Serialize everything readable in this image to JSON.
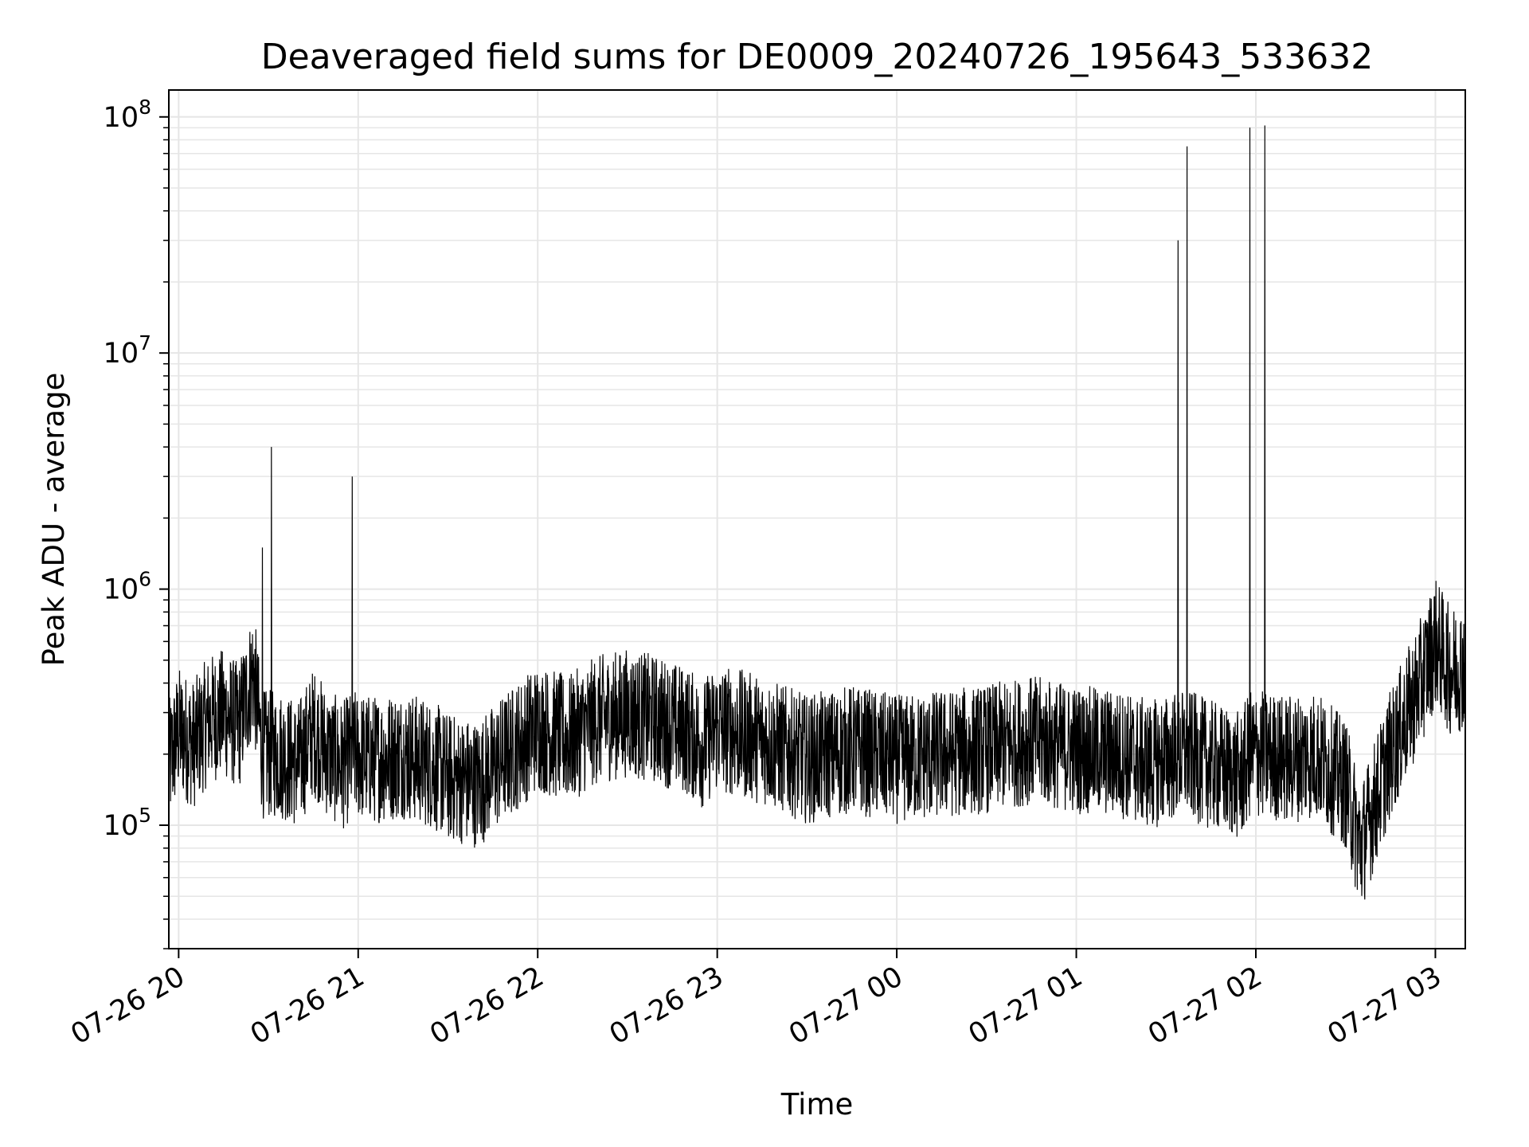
{
  "chart_data": {
    "type": "line",
    "title": "Deaveraged field sums for DE0009_20240726_195643_533632",
    "xlabel": "Time",
    "ylabel": "Peak ADU - average",
    "yscale": "log",
    "ylim": [
      30000,
      130000000
    ],
    "xlim": [
      "2024-07-26 19:56:43",
      "2024-07-27 03:10:00"
    ],
    "grid": true,
    "x_ticks": [
      {
        "time": "2024-07-26 20:00",
        "label": "07-26 20"
      },
      {
        "time": "2024-07-26 21:00",
        "label": "07-26 21"
      },
      {
        "time": "2024-07-26 22:00",
        "label": "07-26 22"
      },
      {
        "time": "2024-07-26 23:00",
        "label": "07-26 23"
      },
      {
        "time": "2024-07-27 00:00",
        "label": "07-27 00"
      },
      {
        "time": "2024-07-27 01:00",
        "label": "07-27 01"
      },
      {
        "time": "2024-07-27 02:00",
        "label": "07-27 02"
      },
      {
        "time": "2024-07-27 03:00",
        "label": "07-27 03"
      }
    ],
    "y_ticks": [
      {
        "value": 100000,
        "base": "10",
        "exp": "5"
      },
      {
        "value": 1000000,
        "base": "10",
        "exp": "6"
      },
      {
        "value": 10000000,
        "base": "10",
        "exp": "7"
      },
      {
        "value": 100000000,
        "base": "10",
        "exp": "8"
      }
    ],
    "series": [
      {
        "color": "#000000",
        "x": [
          "2024-07-26 19:56:43",
          "2024-07-26 20:00",
          "2024-07-26 20:05",
          "2024-07-26 20:10",
          "2024-07-26 20:15",
          "2024-07-26 20:20",
          "2024-07-26 20:25",
          "2024-07-26 20:28",
          "2024-07-26 20:31",
          "2024-07-26 20:34",
          "2024-07-26 20:40",
          "2024-07-26 20:45",
          "2024-07-26 20:50",
          "2024-07-26 20:55",
          "2024-07-26 20:58",
          "2024-07-26 21:05",
          "2024-07-26 21:15",
          "2024-07-26 21:25",
          "2024-07-26 21:30",
          "2024-07-26 21:40",
          "2024-07-26 21:50",
          "2024-07-26 22:00",
          "2024-07-26 22:10",
          "2024-07-26 22:20",
          "2024-07-26 22:30",
          "2024-07-26 22:40",
          "2024-07-26 22:50",
          "2024-07-26 22:55",
          "2024-07-26 23:00",
          "2024-07-26 23:15",
          "2024-07-26 23:30",
          "2024-07-26 23:45",
          "2024-07-27 00:00",
          "2024-07-27 00:15",
          "2024-07-27 00:30",
          "2024-07-27 00:45",
          "2024-07-27 01:00",
          "2024-07-27 01:15",
          "2024-07-27 01:25",
          "2024-07-27 01:34",
          "2024-07-27 01:37",
          "2024-07-27 01:45",
          "2024-07-27 01:55",
          "2024-07-27 01:58",
          "2024-07-27 02:03",
          "2024-07-27 02:10",
          "2024-07-27 02:20",
          "2024-07-27 02:30",
          "2024-07-27 02:35",
          "2024-07-27 02:45",
          "2024-07-27 02:55",
          "2024-07-27 03:00",
          "2024-07-27 03:05",
          "2024-07-27 03:10"
        ],
        "y": [
          180000,
          250000,
          220000,
          280000,
          300000,
          260000,
          450000,
          1500000,
          4000000,
          200000,
          180000,
          250000,
          200000,
          180000,
          3000000,
          190000,
          200000,
          180000,
          160000,
          150000,
          200000,
          260000,
          230000,
          280000,
          300000,
          280000,
          250000,
          220000,
          260000,
          230000,
          190000,
          210000,
          190000,
          200000,
          210000,
          230000,
          210000,
          200000,
          180000,
          30000000,
          75000000,
          180000,
          160000,
          90000000,
          92000000,
          190000,
          200000,
          150000,
          80000,
          200000,
          400000,
          600000,
          450000,
          480000
        ]
      }
    ]
  }
}
